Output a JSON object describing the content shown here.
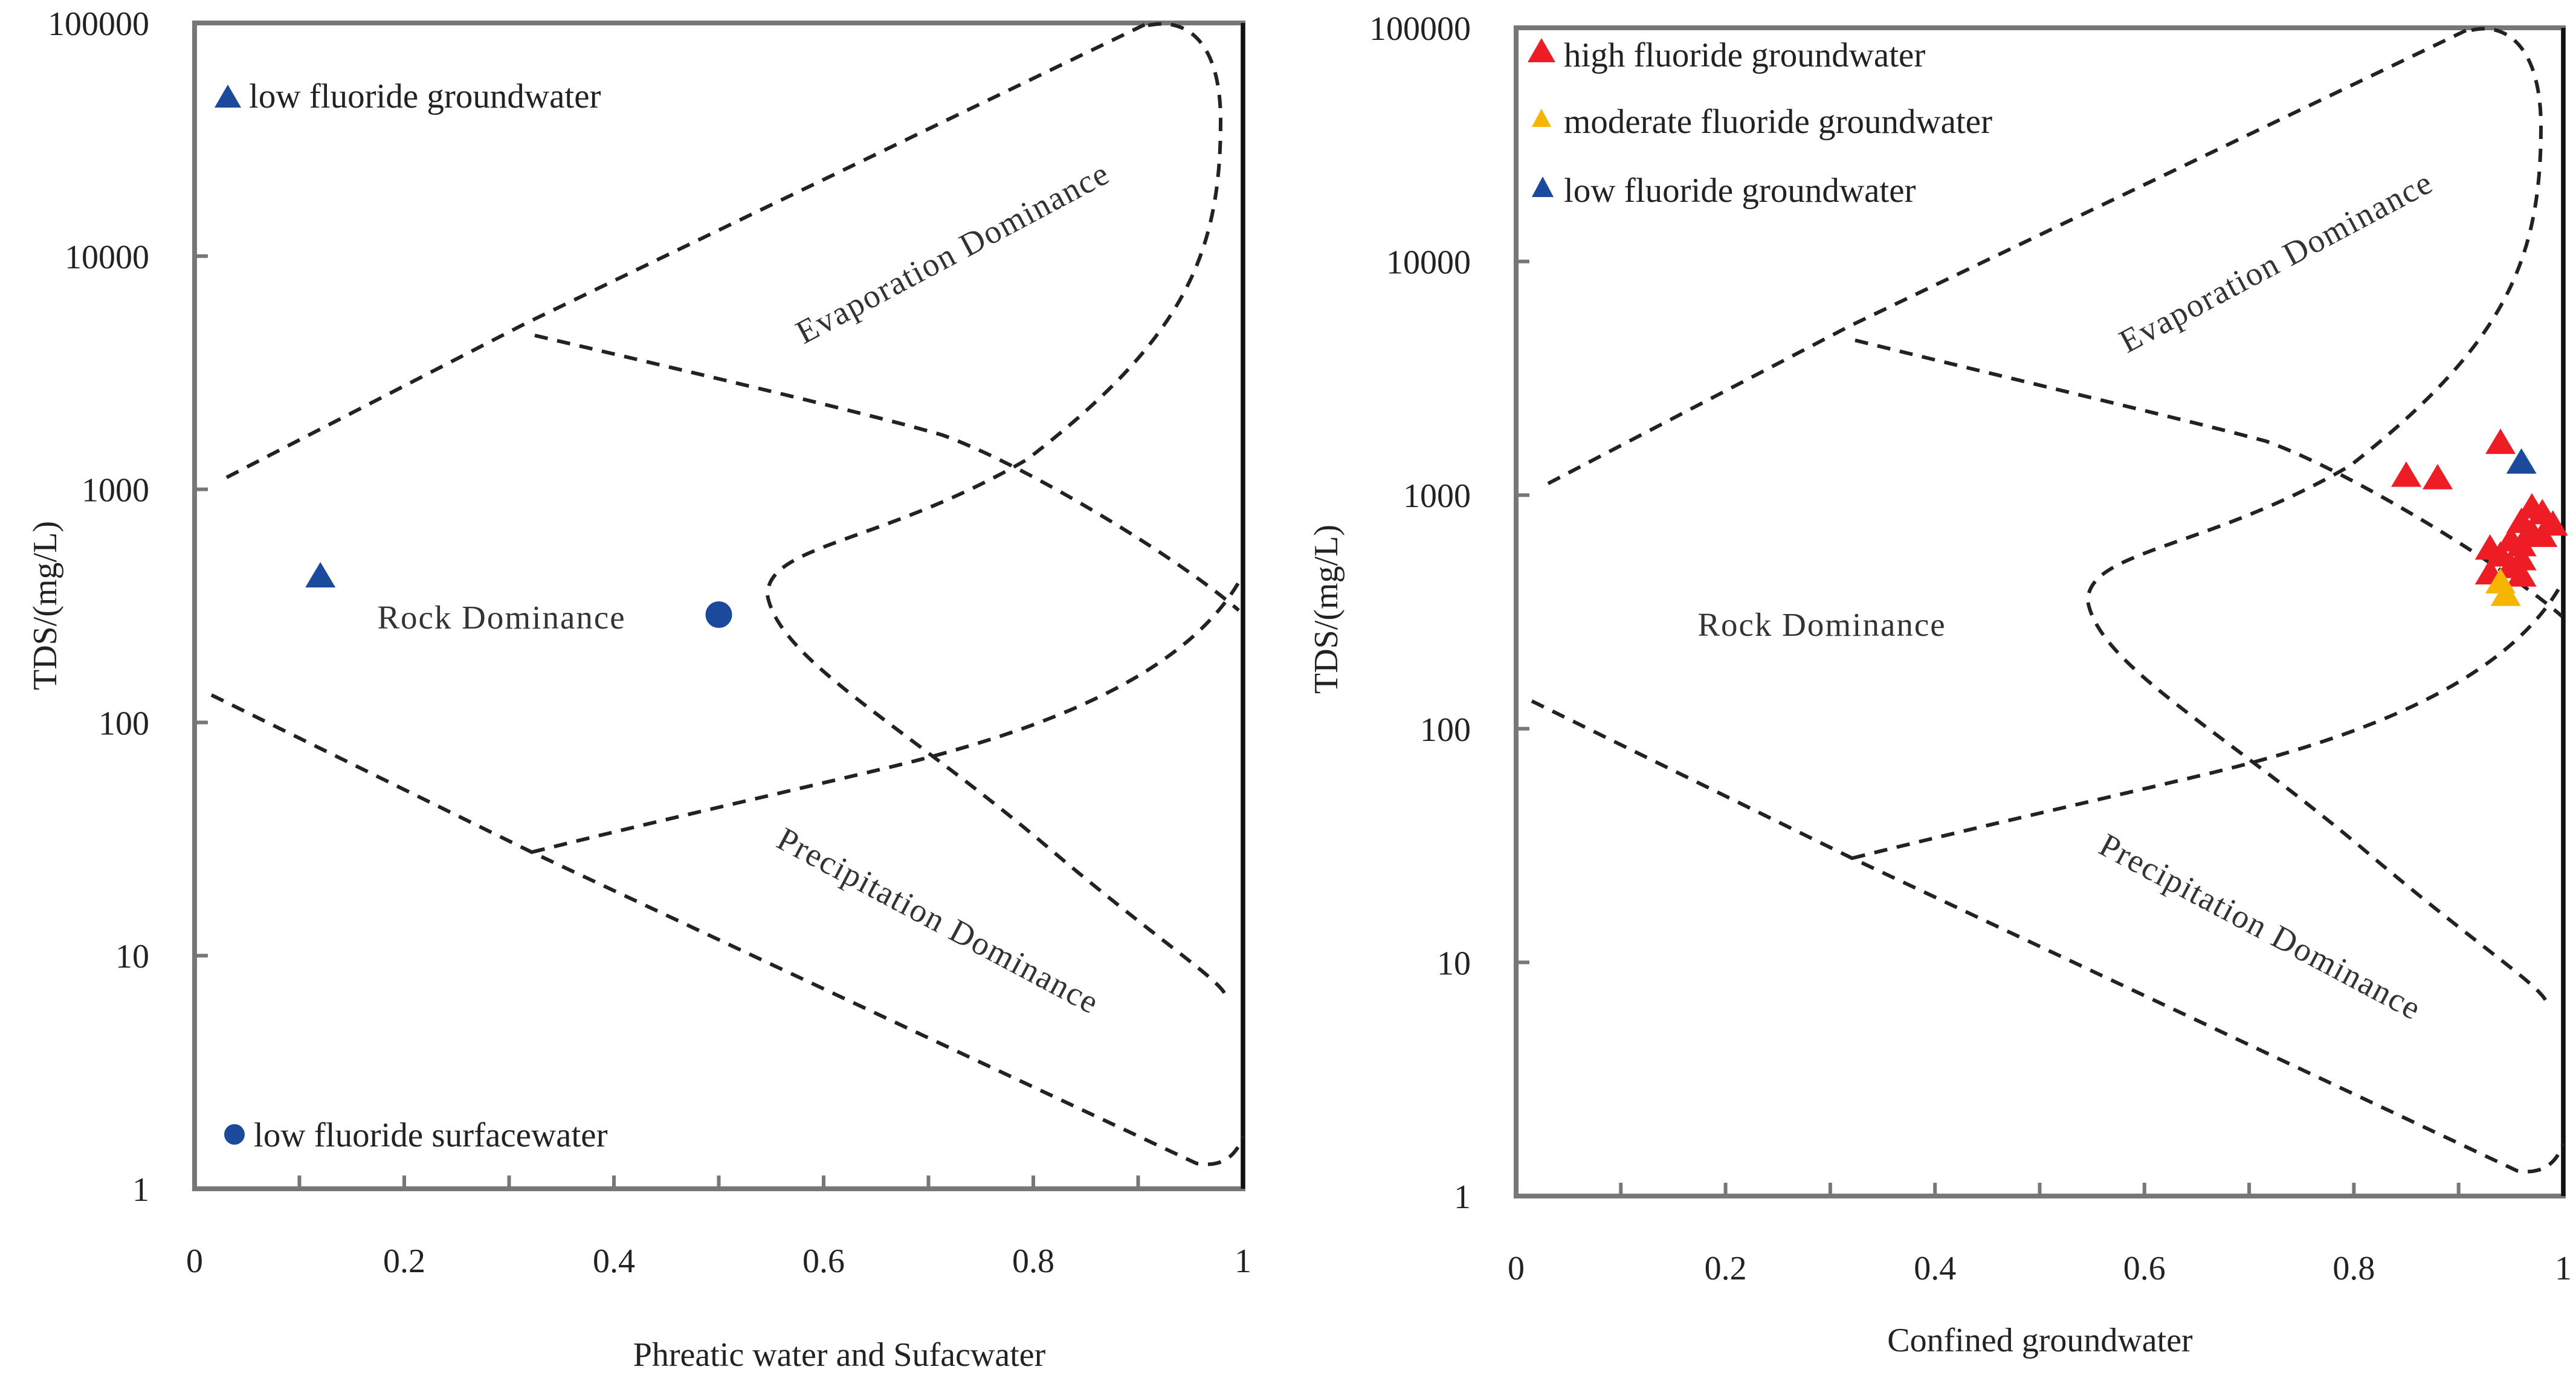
{
  "chart_data": [
    {
      "type": "scatter",
      "title": "",
      "xlabel": "Phreatic water and Sufacwater",
      "ylabel": "TDS/(mg/L)",
      "xlim": [
        0,
        1
      ],
      "ylim": [
        1,
        100000
      ],
      "yscale": "log",
      "x_ticks": [
        "0",
        "0.2",
        "0.4",
        "0.6",
        "0.8",
        "1"
      ],
      "y_ticks": [
        "1",
        "10",
        "100",
        "1000",
        "10000",
        "100000"
      ],
      "regions": [
        "Evaporation Dominance",
        "Rock Dominance",
        "Precipitation Dominance"
      ],
      "series": [
        {
          "name": "low fluoride groundwater",
          "marker": "triangle",
          "color": "#1b4a9c",
          "points": [
            {
              "x": 0.12,
              "y": 430
            }
          ]
        },
        {
          "name": "low fluoride surfacewater",
          "marker": "circle",
          "color": "#1b4a9c",
          "points": [
            {
              "x": 0.5,
              "y": 290
            }
          ]
        }
      ],
      "legend_position": "top-left and bottom-left"
    },
    {
      "type": "scatter",
      "title": "",
      "xlabel": "Confined groundwater",
      "ylabel": "TDS/(mg/L)",
      "xlim": [
        0,
        1
      ],
      "ylim": [
        1,
        100000
      ],
      "yscale": "log",
      "x_ticks": [
        "0",
        "0.2",
        "0.4",
        "0.6",
        "0.8",
        "1"
      ],
      "y_ticks": [
        "1",
        "10",
        "100",
        "1000",
        "10000",
        "100000"
      ],
      "regions": [
        "Evaporation Dominance",
        "Rock Dominance",
        "Precipitation Dominance"
      ],
      "series": [
        {
          "name": "high fluoride groundwater",
          "marker": "triangle",
          "color": "#ee1c24",
          "points": [
            {
              "x": 0.85,
              "y": 1230
            },
            {
              "x": 0.88,
              "y": 1200
            },
            {
              "x": 0.94,
              "y": 1700
            },
            {
              "x": 0.97,
              "y": 900
            },
            {
              "x": 0.98,
              "y": 850
            },
            {
              "x": 0.96,
              "y": 780
            },
            {
              "x": 0.99,
              "y": 760
            },
            {
              "x": 0.97,
              "y": 700
            },
            {
              "x": 0.98,
              "y": 680
            },
            {
              "x": 0.95,
              "y": 650
            },
            {
              "x": 0.96,
              "y": 620
            },
            {
              "x": 0.93,
              "y": 600
            },
            {
              "x": 0.94,
              "y": 560
            },
            {
              "x": 0.96,
              "y": 540
            },
            {
              "x": 0.95,
              "y": 500
            },
            {
              "x": 0.93,
              "y": 470
            },
            {
              "x": 0.96,
              "y": 460
            }
          ]
        },
        {
          "name": "moderate fluoride groundwater",
          "marker": "triangle",
          "color": "#f7b500",
          "points": [
            {
              "x": 0.94,
              "y": 430
            },
            {
              "x": 0.945,
              "y": 380
            }
          ]
        },
        {
          "name": "low fluoride groundwater",
          "marker": "triangle",
          "color": "#1b4a9c",
          "points": [
            {
              "x": 0.96,
              "y": 1400
            }
          ]
        }
      ],
      "legend_position": "top-left"
    }
  ]
}
